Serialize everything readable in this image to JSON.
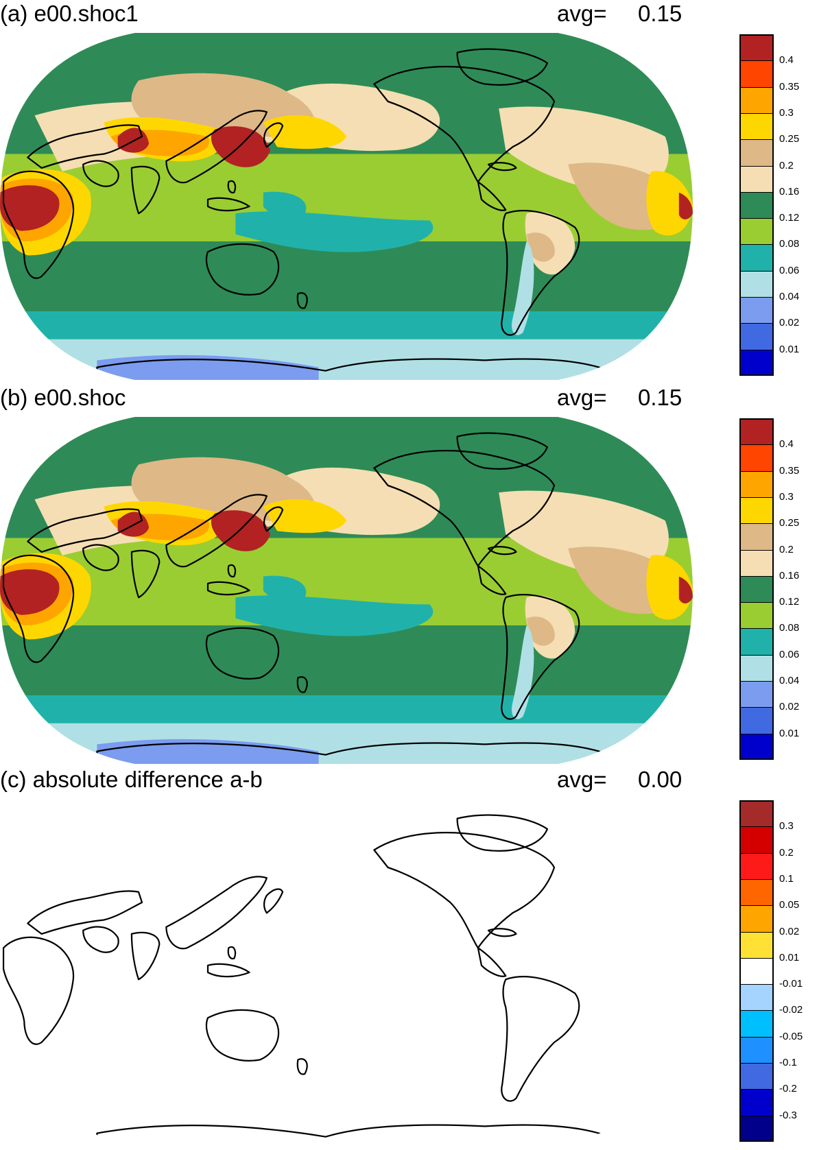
{
  "panels": [
    {
      "title": "(a) e00.shoc1",
      "avg_label": "avg=",
      "avg_value": "0.15",
      "fill": "field",
      "colorbar": {
        "colors": [
          "#b22222",
          "#ff4500",
          "#ffa500",
          "#ffd700",
          "#deb887",
          "#f5deb3",
          "#2e8b57",
          "#9acd32",
          "#20b2aa",
          "#b0e0e6",
          "#7b9cef",
          "#4169e1",
          "#0000cd"
        ],
        "labels": [
          "0.4",
          "0.35",
          "0.3",
          "0.25",
          "0.2",
          "0.16",
          "0.12",
          "0.08",
          "0.06",
          "0.04",
          "0.02",
          "0.01"
        ]
      }
    },
    {
      "title": "(b) e00.shoc",
      "avg_label": "avg=",
      "avg_value": "0.15",
      "fill": "field",
      "colorbar": {
        "colors": [
          "#b22222",
          "#ff4500",
          "#ffa500",
          "#ffd700",
          "#deb887",
          "#f5deb3",
          "#2e8b57",
          "#9acd32",
          "#20b2aa",
          "#b0e0e6",
          "#7b9cef",
          "#4169e1",
          "#0000cd"
        ],
        "labels": [
          "0.4",
          "0.35",
          "0.3",
          "0.25",
          "0.2",
          "0.16",
          "0.12",
          "0.08",
          "0.06",
          "0.04",
          "0.02",
          "0.01"
        ]
      }
    },
    {
      "title": "(c) absolute difference a-b",
      "avg_label": "avg=",
      "avg_value": "0.00",
      "fill": "blank",
      "colorbar": {
        "colors": [
          "#a52a2a",
          "#d40000",
          "#ff1a1a",
          "#ff6600",
          "#ffa500",
          "#ffe135",
          "#ffffff",
          "#a4d4ff",
          "#00bfff",
          "#1e90ff",
          "#4169e1",
          "#0000cd",
          "#00008b"
        ],
        "labels": [
          "0.3",
          "0.2",
          "0.1",
          "0.05",
          "0.02",
          "0.01",
          "-0.01",
          "-0.02",
          "-0.05",
          "-0.1",
          "-0.2",
          "-0.3"
        ]
      }
    }
  ],
  "map_colors": {
    "ocean_base": "#9acd32",
    "dark_green": "#2e8b57",
    "wheat": "#f5deb3",
    "tan": "#deb887",
    "yellow": "#ffd700",
    "orange": "#ffa500",
    "red_orange": "#ff4500",
    "red": "#b22222",
    "teal": "#20b2aa",
    "light_blue": "#b0e0e6",
    "cornflower": "#7b9cef",
    "coast": "#000000"
  }
}
